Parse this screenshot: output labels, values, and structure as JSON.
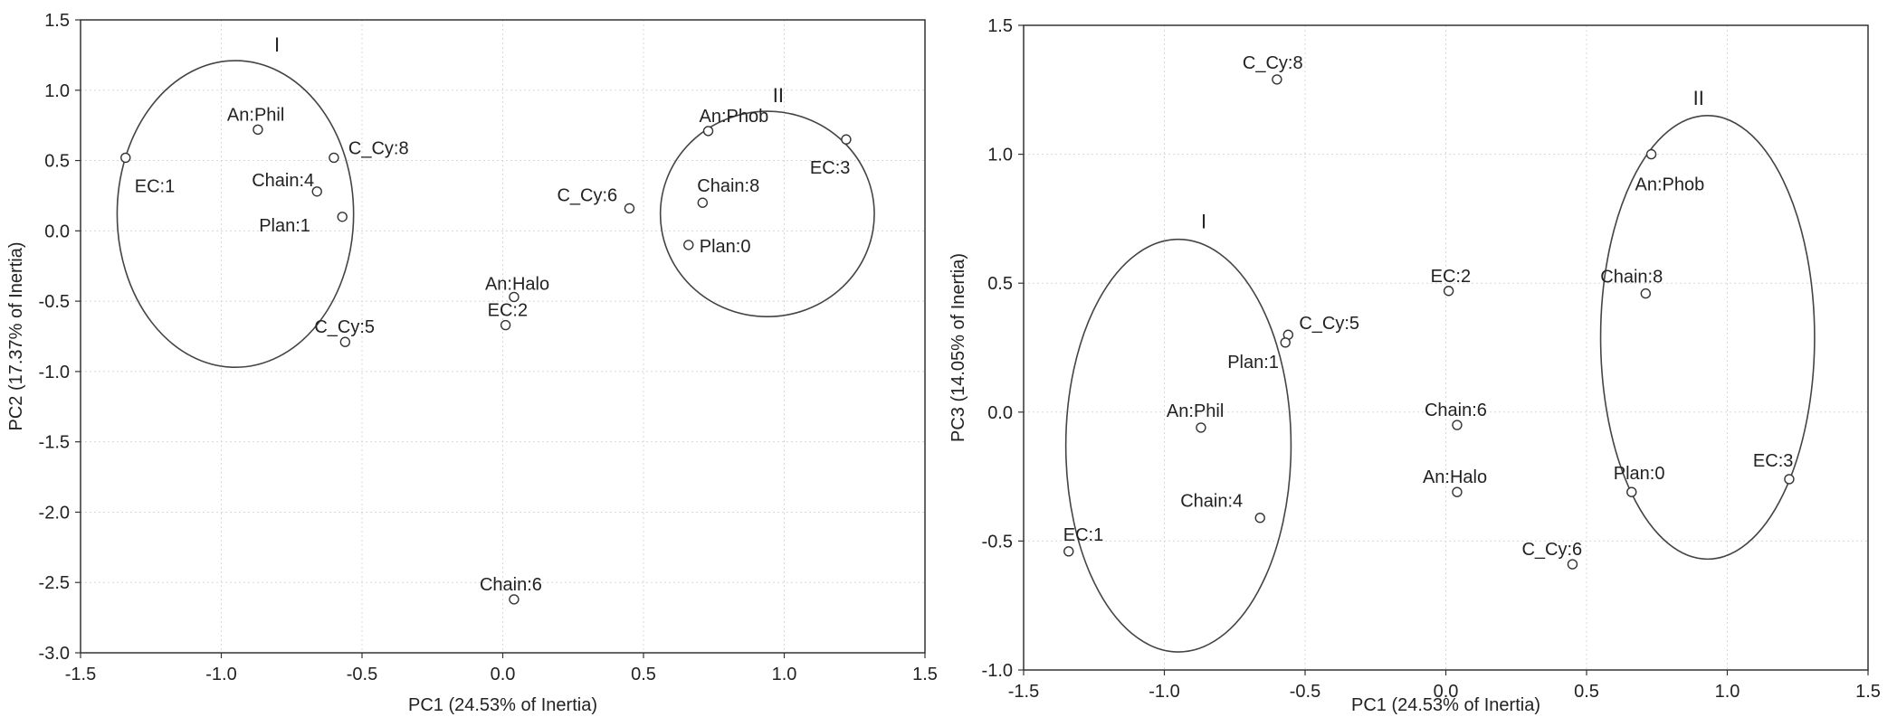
{
  "chart_data": [
    {
      "type": "scatter",
      "xlabel": "PC1 (24.53% of Inertia)",
      "ylabel": "PC2 (17.37% of Inertia)",
      "xlim": [
        -1.5,
        1.5
      ],
      "ylim": [
        -3.0,
        1.5
      ],
      "xticks": [
        "-1.5",
        "-1.0",
        "-0.5",
        "0.0",
        "0.5",
        "1.0",
        "1.5"
      ],
      "yticks": [
        "-3.0",
        "-2.5",
        "-2.0",
        "-1.5",
        "-1.0",
        "-0.5",
        "0.0",
        "0.5",
        "1.0",
        "1.5"
      ],
      "grid": true,
      "points": [
        {
          "label": "EC:1",
          "x": -1.34,
          "y": 0.52
        },
        {
          "label": "An:Phil",
          "x": -0.87,
          "y": 0.72
        },
        {
          "label": "C_Cy:8",
          "x": -0.6,
          "y": 0.52
        },
        {
          "label": "Chain:4",
          "x": -0.66,
          "y": 0.28
        },
        {
          "label": "Plan:1",
          "x": -0.57,
          "y": 0.1
        },
        {
          "label": "C_Cy:5",
          "x": -0.56,
          "y": -0.79
        },
        {
          "label": "An:Halo",
          "x": 0.04,
          "y": -0.47
        },
        {
          "label": "EC:2",
          "x": 0.01,
          "y": -0.67
        },
        {
          "label": "Chain:6",
          "x": 0.04,
          "y": -2.62
        },
        {
          "label": "C_Cy:6",
          "x": 0.45,
          "y": 0.16
        },
        {
          "label": "An:Phob",
          "x": 0.73,
          "y": 0.71
        },
        {
          "label": "Chain:8",
          "x": 0.71,
          "y": 0.2
        },
        {
          "label": "Plan:0",
          "x": 0.66,
          "y": -0.1
        },
        {
          "label": "EC:3",
          "x": 1.22,
          "y": 0.65
        }
      ],
      "groups": [
        {
          "label": "I",
          "cx": -0.95,
          "cy": 0.12,
          "rx": 0.42,
          "ry": 1.09
        },
        {
          "label": "II",
          "cx": 0.94,
          "cy": 0.12,
          "rx": 0.38,
          "ry": 0.73
        }
      ]
    },
    {
      "type": "scatter",
      "xlabel": "PC1 (24.53% of Inertia)",
      "ylabel": "PC3 (14.05% of Inertia)",
      "xlim": [
        -1.5,
        1.5
      ],
      "ylim": [
        -1.0,
        1.5
      ],
      "xticks": [
        "-1.5",
        "-1.0",
        "-0.5",
        "0.0",
        "0.5",
        "1.0",
        "1.5"
      ],
      "yticks": [
        "-1.0",
        "-0.5",
        "0.0",
        "0.5",
        "1.0",
        "1.5"
      ],
      "grid": true,
      "points": [
        {
          "label": "C_Cy:8",
          "x": -0.6,
          "y": 1.29
        },
        {
          "label": "EC:2",
          "x": 0.01,
          "y": 0.47
        },
        {
          "label": "C_Cy:5",
          "x": -0.56,
          "y": 0.3
        },
        {
          "label": "Plan:1",
          "x": -0.57,
          "y": 0.27
        },
        {
          "label": "An:Phil",
          "x": -0.87,
          "y": -0.06
        },
        {
          "label": "Chain:4",
          "x": -0.66,
          "y": -0.41
        },
        {
          "label": "EC:1",
          "x": -1.34,
          "y": -0.54
        },
        {
          "label": "Chain:6",
          "x": 0.04,
          "y": -0.05
        },
        {
          "label": "An:Halo",
          "x": 0.04,
          "y": -0.31
        },
        {
          "label": "C_Cy:6",
          "x": 0.45,
          "y": -0.59
        },
        {
          "label": "An:Phob",
          "x": 0.73,
          "y": 1.0
        },
        {
          "label": "Chain:8",
          "x": 0.71,
          "y": 0.46
        },
        {
          "label": "Plan:0",
          "x": 0.66,
          "y": -0.31
        },
        {
          "label": "EC:3",
          "x": 1.22,
          "y": -0.26
        }
      ],
      "groups": [
        {
          "label": "I",
          "cx": -0.95,
          "cy": -0.13,
          "rx": 0.4,
          "ry": 0.8
        },
        {
          "label": "II",
          "cx": 0.93,
          "cy": 0.29,
          "rx": 0.38,
          "ry": 0.86
        }
      ]
    }
  ]
}
